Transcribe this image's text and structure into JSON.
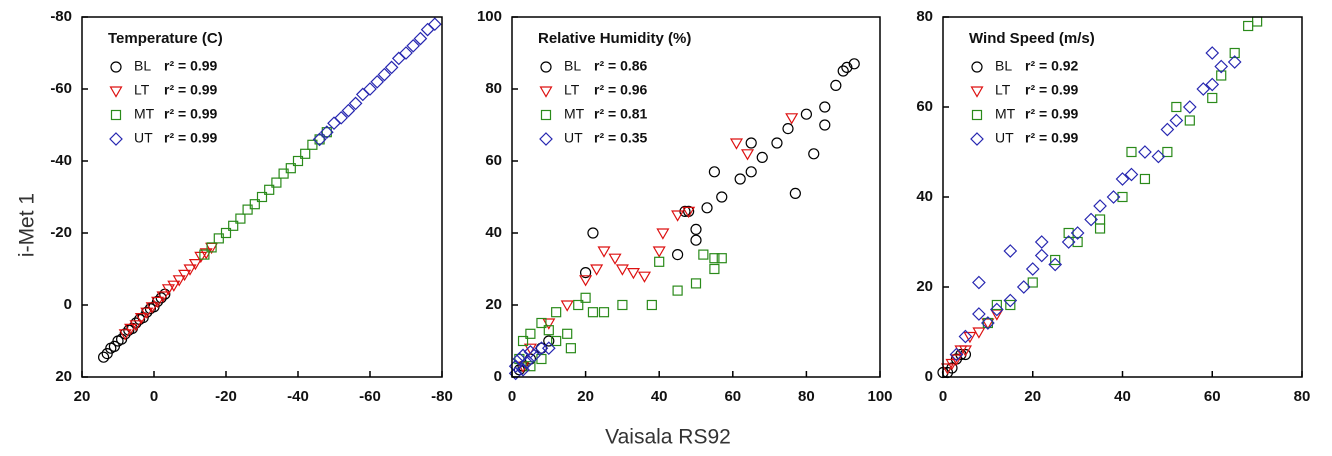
{
  "ylabel": "i-Met 1",
  "xlabel": "Vaisala RS92",
  "chart_data": [
    {
      "type": "scatter",
      "title": "Temperature (C)",
      "xlim": [
        20,
        -80
      ],
      "ylim": [
        20,
        -80
      ],
      "xticks": [
        20,
        0,
        -20,
        -40,
        -60,
        -80
      ],
      "yticks": [
        20,
        0,
        -20,
        -40,
        -60,
        -80
      ],
      "series": [
        {
          "name": "BL",
          "annotation": "r² = 0.99",
          "color": "#000000",
          "marker": "circle",
          "x": [
            14,
            13,
            12,
            11,
            10,
            9,
            8,
            7,
            6,
            5,
            4,
            3,
            2,
            1,
            0,
            -1,
            -2,
            -3
          ],
          "values": [
            14.5,
            13.5,
            12,
            11.5,
            10,
            9.5,
            8,
            7,
            6.5,
            5,
            4,
            3.5,
            2,
            1,
            0.5,
            -1,
            -2,
            -3
          ]
        },
        {
          "name": "LT",
          "annotation": "r² = 0.99",
          "color": "#dd1111",
          "marker": "triangle",
          "x": [
            8,
            6.5,
            5,
            3.5,
            2,
            0.5,
            -1,
            -2.5,
            -4,
            -5.5,
            -7,
            -8.5,
            -10,
            -11.5,
            -13,
            -14.5,
            -16
          ],
          "values": [
            8,
            6.5,
            5.5,
            3.5,
            2,
            0.5,
            -1,
            -2.5,
            -4.5,
            -5.5,
            -7,
            -8.5,
            -10,
            -11.5,
            -13.5,
            -14.5,
            -16
          ]
        },
        {
          "name": "MT",
          "annotation": "r² = 0.99",
          "color": "#2a8a1a",
          "marker": "square",
          "x": [
            -14,
            -16,
            -18,
            -20,
            -22,
            -24,
            -26,
            -28,
            -30,
            -32,
            -34,
            -36,
            -38,
            -40,
            -42,
            -44,
            -46,
            -48
          ],
          "values": [
            -14,
            -16,
            -18.5,
            -20,
            -22,
            -24,
            -26.5,
            -28,
            -30,
            -32,
            -34,
            -36.5,
            -38,
            -40,
            -42,
            -44.5,
            -46,
            -48
          ]
        },
        {
          "name": "UT",
          "annotation": "r² = 0.99",
          "color": "#2626b0",
          "marker": "diamond",
          "x": [
            -46,
            -48,
            -50,
            -52,
            -54,
            -56,
            -58,
            -60,
            -62,
            -64,
            -66,
            -68,
            -70,
            -72,
            -74,
            -76,
            -78
          ],
          "values": [
            -46,
            -48,
            -50.5,
            -52,
            -54,
            -56,
            -58.5,
            -60,
            -62,
            -64,
            -66,
            -68.5,
            -70,
            -72,
            -74,
            -76.5,
            -78
          ]
        }
      ]
    },
    {
      "type": "scatter",
      "title": "Relative Humidity (%)",
      "xlim": [
        0,
        100
      ],
      "ylim": [
        0,
        100
      ],
      "xticks": [
        0,
        20,
        40,
        60,
        80,
        100
      ],
      "yticks": [
        0,
        20,
        40,
        60,
        80,
        100
      ],
      "series": [
        {
          "name": "BL",
          "annotation": "r² = 0.86",
          "color": "#000000",
          "marker": "circle",
          "x": [
            22,
            20,
            45,
            47,
            48,
            50,
            50,
            53,
            55,
            57,
            62,
            65,
            65,
            68,
            72,
            75,
            77,
            80,
            82,
            85,
            85,
            88,
            90,
            91,
            93,
            5,
            3,
            8,
            10,
            2
          ],
          "values": [
            40,
            29,
            34,
            46,
            46,
            38,
            41,
            47,
            57,
            50,
            55,
            65,
            57,
            61,
            65,
            69,
            51,
            73,
            62,
            75,
            70,
            81,
            85,
            86,
            87,
            5,
            3,
            8,
            10,
            2
          ]
        },
        {
          "name": "LT",
          "annotation": "r² = 0.96",
          "color": "#dd1111",
          "marker": "triangle",
          "x": [
            5,
            10,
            15,
            20,
            23,
            25,
            28,
            30,
            33,
            36,
            40,
            41,
            45,
            48,
            61,
            64,
            76,
            3
          ],
          "values": [
            8,
            15,
            20,
            27,
            30,
            35,
            33,
            30,
            29,
            28,
            35,
            40,
            45,
            46,
            65,
            62,
            72,
            3
          ]
        },
        {
          "name": "MT",
          "annotation": "r² = 0.81",
          "color": "#2a8a1a",
          "marker": "square",
          "x": [
            2,
            3,
            5,
            8,
            10,
            12,
            15,
            18,
            20,
            12,
            8,
            5,
            25,
            30,
            38,
            45,
            50,
            55,
            57,
            55,
            52,
            40,
            22,
            16
          ],
          "values": [
            5,
            10,
            12,
            15,
            13,
            18,
            12,
            20,
            22,
            10,
            5,
            3,
            18,
            20,
            20,
            24,
            26,
            30,
            33,
            33,
            34,
            32,
            18,
            8
          ]
        },
        {
          "name": "UT",
          "annotation": "r² = 0.35",
          "color": "#2626b0",
          "marker": "diamond",
          "x": [
            1,
            2,
            3,
            4,
            5,
            6,
            8,
            10,
            1,
            3
          ],
          "values": [
            3,
            5,
            6,
            4,
            7,
            6,
            8,
            8,
            1,
            2
          ]
        }
      ]
    },
    {
      "type": "scatter",
      "title": "Wind Speed (m/s)",
      "xlim": [
        0,
        80
      ],
      "ylim": [
        0,
        80
      ],
      "xticks": [
        0,
        20,
        40,
        60,
        80
      ],
      "yticks": [
        0,
        20,
        40,
        60,
        80
      ],
      "series": [
        {
          "name": "BL",
          "annotation": "r² = 0.92",
          "color": "#000000",
          "marker": "circle",
          "x": [
            0,
            1,
            2,
            3,
            4,
            5
          ],
          "values": [
            1,
            1,
            2,
            4,
            5,
            5
          ]
        },
        {
          "name": "LT",
          "annotation": "r² = 0.99",
          "color": "#dd1111",
          "marker": "triangle",
          "x": [
            1,
            2,
            3,
            4,
            5,
            6,
            8,
            10,
            12
          ],
          "values": [
            2,
            3,
            4,
            6,
            6,
            9,
            10,
            12,
            14
          ]
        },
        {
          "name": "MT",
          "annotation": "r² = 0.99",
          "color": "#2a8a1a",
          "marker": "square",
          "x": [
            10,
            15,
            20,
            25,
            30,
            35,
            40,
            45,
            50,
            55,
            60,
            62,
            65,
            68,
            70,
            52,
            35,
            28,
            42,
            12
          ],
          "values": [
            12,
            16,
            21,
            26,
            30,
            35,
            40,
            44,
            50,
            57,
            62,
            67,
            72,
            78,
            79,
            60,
            33,
            32,
            50,
            16
          ]
        },
        {
          "name": "UT",
          "annotation": "r² = 0.99",
          "color": "#2626b0",
          "marker": "diamond",
          "x": [
            3,
            5,
            8,
            10,
            12,
            15,
            18,
            20,
            22,
            25,
            28,
            30,
            33,
            35,
            38,
            40,
            42,
            45,
            48,
            50,
            52,
            55,
            58,
            60,
            62,
            65,
            8,
            15,
            22,
            60
          ],
          "values": [
            5,
            9,
            14,
            12,
            15,
            17,
            20,
            24,
            27,
            25,
            30,
            32,
            35,
            38,
            40,
            44,
            45,
            50,
            49,
            55,
            57,
            60,
            64,
            65,
            69,
            70,
            21,
            28,
            30,
            72
          ]
        }
      ]
    }
  ]
}
